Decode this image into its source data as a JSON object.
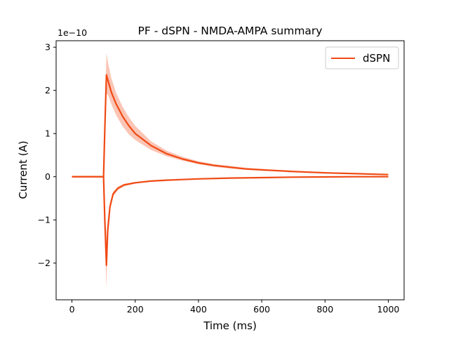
{
  "chart_data": {
    "type": "line",
    "title": "PF - dSPN - NMDA-AMPA summary",
    "xlabel": "Time (ms)",
    "ylabel": "Current (A)",
    "y_scale_label": "1e−10",
    "xlim": [
      -50,
      1050
    ],
    "ylim": [
      -2.85,
      3.15
    ],
    "x_ticks": [
      0,
      200,
      400,
      600,
      800,
      1000
    ],
    "y_ticks": [
      -2,
      -1,
      0,
      1,
      2,
      3
    ],
    "x_tick_labels": [
      "0",
      "200",
      "400",
      "600",
      "800",
      "1000"
    ],
    "y_tick_labels": [
      "−2",
      "−1",
      "0",
      "1",
      "2",
      "3"
    ],
    "grid": false,
    "legend": {
      "position": "top-right",
      "entries": [
        {
          "label": "dSPN",
          "color": "#f04a14"
        }
      ]
    },
    "series": [
      {
        "name": "dSPN",
        "color": "#f04a14",
        "band_color": "#f9b29c",
        "x": [
          0,
          100,
          104,
          109,
          115,
          125,
          140,
          160,
          180,
          200,
          250,
          300,
          350,
          400,
          450,
          500,
          550,
          600,
          700,
          800,
          900,
          1000
        ],
        "y": [
          0,
          0,
          1.1,
          2.36,
          2.2,
          1.95,
          1.68,
          1.4,
          1.18,
          1.0,
          0.72,
          0.53,
          0.41,
          0.32,
          0.26,
          0.22,
          0.18,
          0.16,
          0.12,
          0.09,
          0.07,
          0.05
        ],
        "y_lower": [
          0,
          0,
          0.9,
          1.92,
          1.88,
          1.67,
          1.42,
          1.17,
          0.98,
          0.85,
          0.62,
          0.47,
          0.37,
          0.29,
          0.23,
          0.19,
          0.16,
          0.14,
          0.1,
          0.08,
          0.06,
          0.04
        ],
        "y_upper": [
          0,
          0,
          1.3,
          2.86,
          2.6,
          2.27,
          1.94,
          1.62,
          1.38,
          1.18,
          0.82,
          0.6,
          0.46,
          0.36,
          0.29,
          0.25,
          0.21,
          0.18,
          0.14,
          0.11,
          0.08,
          0.06
        ]
      },
      {
        "name": "dSPN",
        "color": "#f04a14",
        "band_color": "#f9b29c",
        "x": [
          0,
          100,
          104,
          109,
          113,
          120,
          130,
          145,
          165,
          200,
          250,
          300,
          400,
          500,
          600,
          700,
          800,
          900,
          1000
        ],
        "y": [
          0,
          0,
          -1.0,
          -2.05,
          -1.25,
          -0.7,
          -0.4,
          -0.27,
          -0.19,
          -0.14,
          -0.1,
          -0.08,
          -0.05,
          -0.03,
          -0.02,
          -0.01,
          -0.005,
          0,
          0
        ],
        "y_lower": [
          0,
          0,
          -1.3,
          -2.58,
          -1.5,
          -0.8,
          -0.46,
          -0.31,
          -0.22,
          -0.16,
          -0.115,
          -0.09,
          -0.06,
          -0.035,
          -0.025,
          -0.015,
          -0.008,
          -0.004,
          -0.003
        ],
        "y_upper": [
          0,
          0,
          -0.7,
          -1.55,
          -1.0,
          -0.6,
          -0.34,
          -0.23,
          -0.16,
          -0.12,
          -0.085,
          -0.07,
          -0.04,
          -0.025,
          -0.015,
          -0.005,
          0,
          0.004,
          0.003
        ]
      }
    ]
  }
}
